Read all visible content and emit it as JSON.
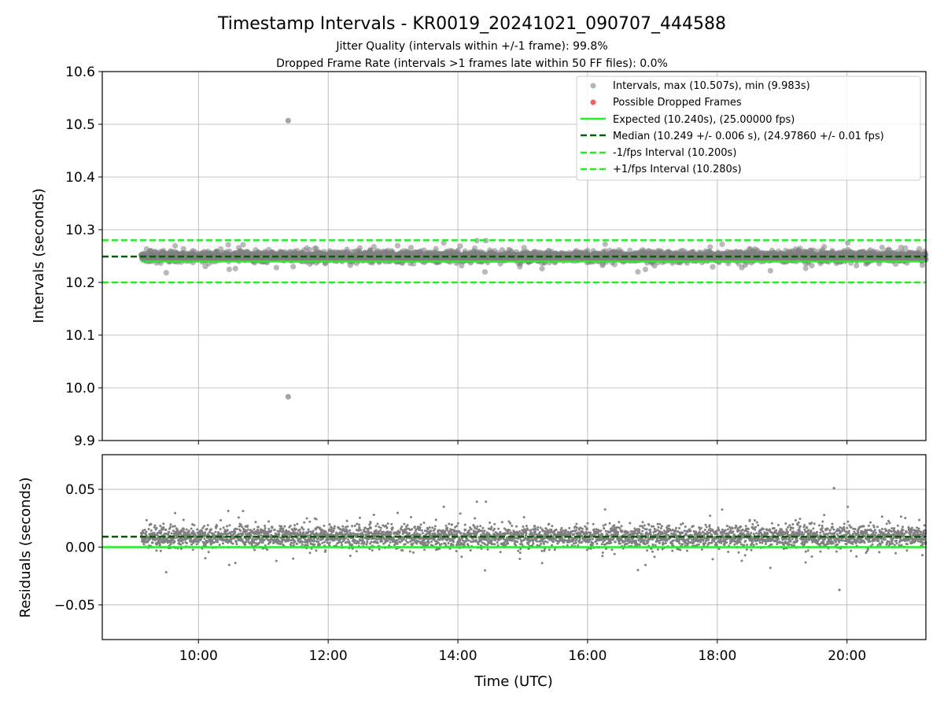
{
  "figure": {
    "title": "Timestamp Intervals - KR0019_20241021_090707_444588",
    "subtitle_1": "Jitter Quality (intervals within +/-1 frame): 99.8%",
    "subtitle_2": "Dropped Frame Rate (intervals >1 frames late within 50 FF files): 0.0%",
    "xlabel": "Time (UTC)"
  },
  "colors": {
    "points": "#808080",
    "dropped": "#f06060",
    "expected": "#22ee22",
    "median": "#006400",
    "fps_bounds": "#22ee22",
    "grid": "#b0b0b0"
  },
  "chart_data": [
    {
      "type": "scatter",
      "ylabel": "Intervals (seconds)",
      "xlim": [
        "08:31",
        "21:13"
      ],
      "ylim": [
        9.9,
        10.6
      ],
      "x_ticks": [
        "10:00",
        "12:00",
        "14:00",
        "16:00",
        "18:00",
        "20:00"
      ],
      "y_ticks": [
        "9.9",
        "10.0",
        "10.1",
        "10.2",
        "10.3",
        "10.4",
        "10.5",
        "10.6"
      ],
      "grid": true,
      "legend_position": "top-right",
      "time_range": [
        "09:07",
        "21:13"
      ],
      "frame_interval_s": 10.24,
      "point_count": 4260,
      "median_s": 10.249,
      "spread_s": 0.006,
      "max_s": 10.507,
      "max_at": "11:23",
      "min_s": 9.983,
      "min_at": "11:23",
      "reference_lines": [
        {
          "name": "Expected (10.240s), (25.00000 fps)",
          "y": 10.24,
          "style": "solid"
        },
        {
          "name": "Median (10.249 +/- 0.006 s), (24.97860 +/- 0.01 fps)",
          "y": 10.249,
          "style": "dashed"
        },
        {
          "name": "-1/fps Interval (10.200s)",
          "y": 10.2,
          "style": "dashed"
        },
        {
          "name": "+1/fps Interval (10.280s)",
          "y": 10.28,
          "style": "dashed"
        }
      ],
      "series": [
        {
          "name": "Intervals, max (10.507s), min (9.983s)",
          "style": "points"
        },
        {
          "name": "Possible Dropped Frames",
          "style": "points",
          "count": 0
        }
      ]
    },
    {
      "type": "scatter",
      "ylabel": "Residuals (seconds)",
      "xlim": [
        "08:31",
        "21:13"
      ],
      "ylim": [
        -0.08,
        0.08
      ],
      "x_ticks": [
        "10:00",
        "12:00",
        "14:00",
        "16:00",
        "18:00",
        "20:00"
      ],
      "y_ticks": [
        "−0.05",
        "0.00",
        "0.05"
      ],
      "grid": true,
      "zero_line": 0.0,
      "median_residual": 0.009,
      "spread": 0.006,
      "max_residual": 0.051,
      "min_residual": -0.037
    }
  ]
}
